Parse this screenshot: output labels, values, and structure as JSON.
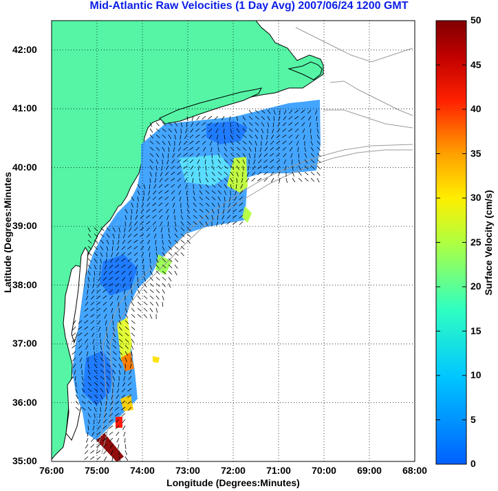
{
  "map": {
    "title": "Mid-Atlantic Raw Velocities (1 Day Avg) 2007/06/24 1200 GMT",
    "xlabel": "Longitude (Degrees:Minutes)",
    "ylabel": "Latitude (Degrees:Minutes",
    "x_ticks": [
      "76:00",
      "75:00",
      "74:00",
      "73:00",
      "72:00",
      "71:00",
      "70:00",
      "69:00",
      "68:00"
    ],
    "y_ticks": [
      "42:00",
      "41:00",
      "40:00",
      "39:00",
      "38:00",
      "37:00",
      "36:00",
      "35:00"
    ],
    "lon_range": [
      -76,
      -68
    ],
    "lat_range": [
      35,
      42.5
    ],
    "grid": true,
    "land_color": "#55f5a5",
    "coast_color": "#000000",
    "bathymetry_color": "#9a9a9a"
  },
  "colorbar": {
    "label": "Surface Velocity (cm/s)",
    "ticks": [
      "50",
      "45",
      "40",
      "35",
      "30",
      "25",
      "20",
      "15",
      "10",
      "5",
      "0"
    ],
    "range": [
      0,
      50
    ],
    "placement": "right",
    "colormap": "jet"
  }
}
